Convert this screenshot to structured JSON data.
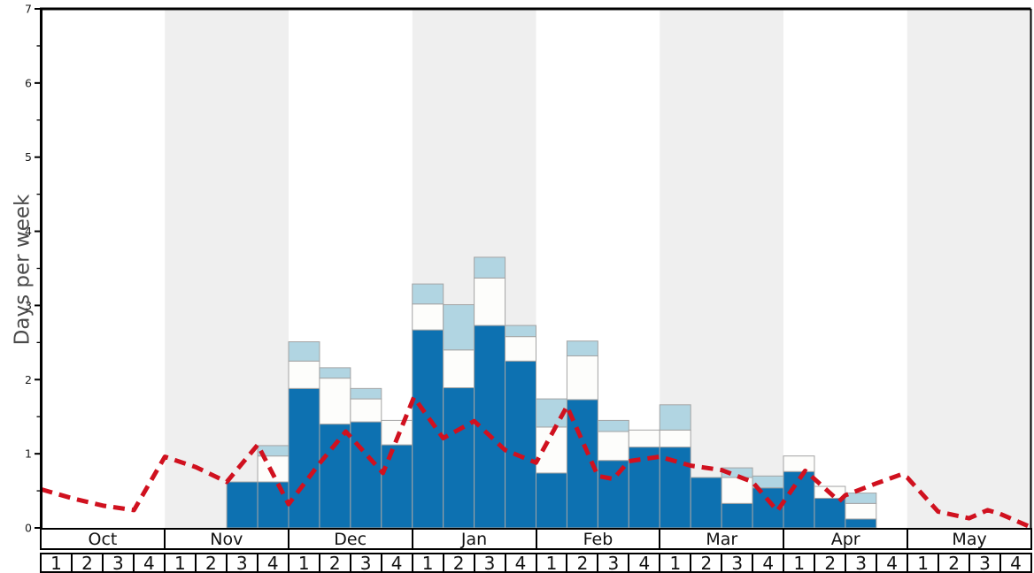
{
  "chart_data": {
    "type": "bar",
    "title": "",
    "xlabel": "",
    "ylabel": "Days per week",
    "ylim": [
      0,
      7
    ],
    "y_tick_labels": [
      "0",
      "1",
      "2",
      "3",
      "4",
      "5",
      "6",
      "7"
    ],
    "y_minor_tick_step": 0.5,
    "grid": false,
    "legend": "none",
    "x_axis": {
      "months": [
        "Oct",
        "Nov",
        "Dec",
        "Jan",
        "Feb",
        "Mar",
        "Apr",
        "May"
      ],
      "weeks_per_month": [
        "1",
        "2",
        "3",
        "4"
      ],
      "shaded_month_indices": [
        1,
        3,
        5,
        7
      ]
    },
    "series": [
      {
        "name": "dark-blue-days",
        "color": "#0d71b1",
        "values": [
          0,
          0,
          0,
          0,
          0,
          0,
          0.62,
          0.62,
          1.88,
          1.4,
          1.43,
          1.12,
          2.67,
          1.89,
          2.73,
          2.25,
          0.74,
          1.73,
          0.91,
          1.09,
          1.09,
          0.68,
          0.33,
          0.54,
          0.76,
          0.4,
          0.12,
          0,
          0,
          0,
          0,
          0
        ]
      },
      {
        "name": "white-days",
        "color": "#fdfdfb",
        "values": [
          0,
          0,
          0,
          0,
          0,
          0,
          0,
          0.35,
          0.37,
          0.62,
          0.31,
          0.33,
          0.35,
          0.51,
          0.64,
          0.33,
          0.62,
          0.59,
          0.39,
          0.23,
          0.23,
          0,
          0.35,
          0,
          0.21,
          0.16,
          0.21,
          0,
          0,
          0,
          0,
          0
        ]
      },
      {
        "name": "light-blue-days",
        "color": "#b1d5e2",
        "values": [
          0,
          0,
          0,
          0,
          0,
          0,
          0,
          0.14,
          0.26,
          0.14,
          0.14,
          0,
          0.27,
          0.61,
          0.28,
          0.15,
          0.38,
          0.2,
          0.15,
          0,
          0.34,
          0,
          0.13,
          0.16,
          0,
          0,
          0.14,
          0,
          0,
          0,
          0,
          0
        ]
      }
    ],
    "line_series": {
      "name": "red-dashed-trend",
      "color": "#d0111f",
      "style": "dashed",
      "points": [
        [
          0,
          0.52
        ],
        [
          1,
          0.4
        ],
        [
          2,
          0.3
        ],
        [
          3,
          0.24
        ],
        [
          4,
          0.96
        ],
        [
          5,
          0.82
        ],
        [
          6,
          0.62
        ],
        [
          7,
          1.12
        ],
        [
          8,
          0.32
        ],
        [
          9,
          0.87
        ],
        [
          9.85,
          1.3
        ],
        [
          11.05,
          0.74
        ],
        [
          12.05,
          1.76
        ],
        [
          13,
          1.21
        ],
        [
          14,
          1.44
        ],
        [
          15,
          1.05
        ],
        [
          16,
          0.88
        ],
        [
          17,
          1.64
        ],
        [
          18,
          0.7
        ],
        [
          18.5,
          0.66
        ],
        [
          19,
          0.9
        ],
        [
          20,
          0.96
        ],
        [
          21,
          0.84
        ],
        [
          22,
          0.78
        ],
        [
          23,
          0.62
        ],
        [
          23.8,
          0.23
        ],
        [
          24.7,
          0.77
        ],
        [
          25,
          0.66
        ],
        [
          25.8,
          0.36
        ],
        [
          26,
          0.44
        ],
        [
          27,
          0.6
        ],
        [
          27.8,
          0.72
        ],
        [
          28,
          0.68
        ],
        [
          29,
          0.22
        ],
        [
          30,
          0.13
        ],
        [
          30.6,
          0.24
        ],
        [
          31,
          0.19
        ],
        [
          32,
          0.01
        ]
      ]
    },
    "colors": {
      "month_band_shade": "#efefef",
      "month_band_plain": "#ffffff",
      "bar_border": "#a4a4a4",
      "axis": "#000000",
      "tick_label": "#1a1a1a",
      "y_axis_title": "#4a4a4a"
    }
  }
}
